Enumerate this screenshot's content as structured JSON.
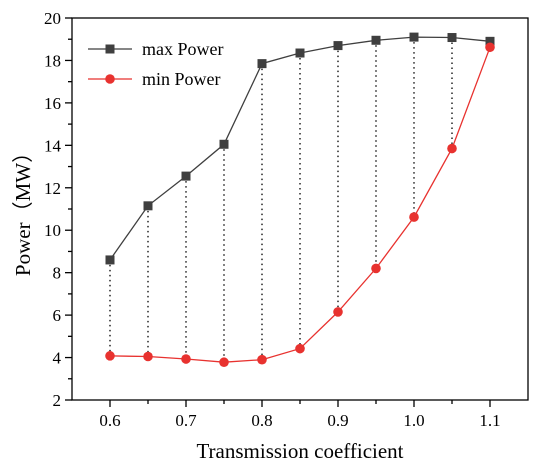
{
  "chart_data": {
    "type": "line",
    "title": "",
    "xlabel": "Transmission coefficient",
    "ylabel": "Power（MW）",
    "xlim": [
      0.55,
      1.15
    ],
    "ylim": [
      2,
      20
    ],
    "x": [
      0.6,
      0.65,
      0.7,
      0.75,
      0.8,
      0.85,
      0.9,
      0.95,
      1.0,
      1.05,
      1.1
    ],
    "x_ticks": [
      "0.6",
      "0.7",
      "0.8",
      "0.9",
      "1.0",
      "1.1"
    ],
    "y_ticks": [
      "2",
      "4",
      "6",
      "8",
      "10",
      "12",
      "14",
      "16",
      "18",
      "20"
    ],
    "grid": false,
    "legend_position": "top-left",
    "drop_lines": "dotted vertical lines connecting max and min at each x",
    "series": [
      {
        "name": "max Power",
        "color": "#3f3f3f",
        "marker": "square",
        "values": [
          8.6,
          11.15,
          12.55,
          14.05,
          17.85,
          18.35,
          18.7,
          18.95,
          19.1,
          19.08,
          18.9
        ]
      },
      {
        "name": "min Power",
        "color": "#e8322f",
        "marker": "circle",
        "values": [
          4.08,
          4.05,
          3.93,
          3.78,
          3.9,
          4.42,
          6.15,
          8.2,
          10.62,
          13.85,
          18.62
        ]
      }
    ]
  }
}
